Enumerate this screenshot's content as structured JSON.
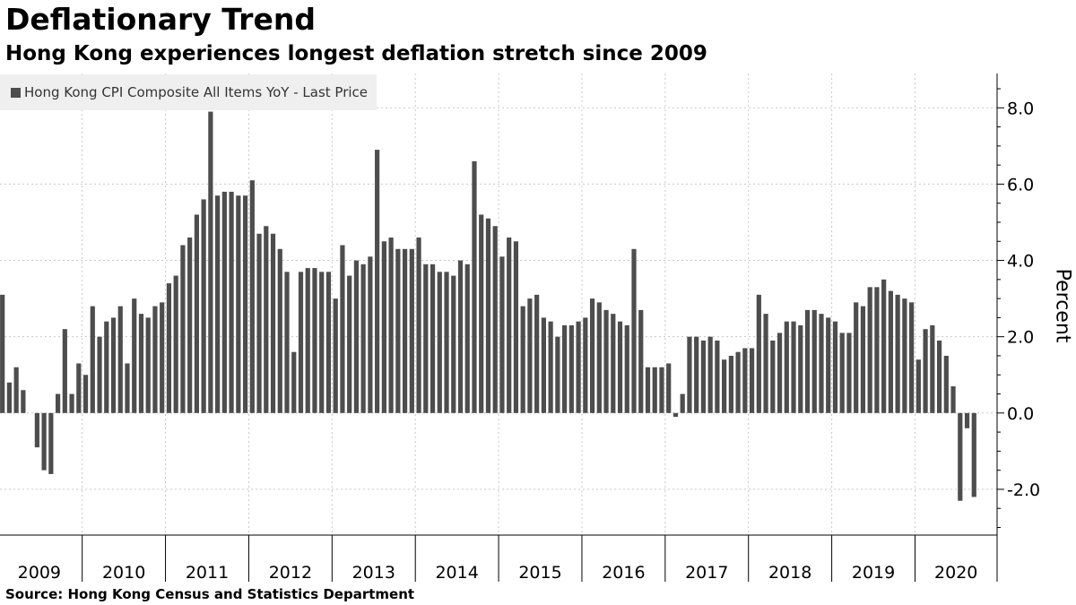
{
  "title": "Deflationary Trend",
  "subtitle": "Hong Kong experiences longest deflation stretch since 2009",
  "source": "Source:  Hong Kong Census and Statistics Department",
  "chart_data": {
    "type": "bar",
    "title": "Deflationary Trend",
    "subtitle": "Hong Kong experiences longest deflation stretch since 2009",
    "xlabel": "",
    "ylabel": "Percent",
    "ylim": [
      -3.2,
      8.9
    ],
    "yticks": [
      8.0,
      6.0,
      4.0,
      2.0,
      0.0,
      -2.0
    ],
    "ytick_labels": [
      "8.0",
      "6.0",
      "4.0",
      "2.0",
      "0.0",
      "-2.0"
    ],
    "year_labels": [
      "2009",
      "2010",
      "2011",
      "2012",
      "2013",
      "2014",
      "2015",
      "2016",
      "2017",
      "2018",
      "2019",
      "2020"
    ],
    "grid": true,
    "legend_position": "top-left",
    "bar_color": "#4d4d4d",
    "series": [
      {
        "name": "Hong Kong CPI Composite All Items YoY - Last Price",
        "frequency": "monthly",
        "start": "2009-01",
        "values": [
          3.1,
          0.8,
          1.2,
          0.6,
          0.0,
          -0.9,
          -1.5,
          -1.6,
          0.5,
          2.2,
          0.5,
          1.3,
          1.0,
          2.8,
          2.0,
          2.4,
          2.5,
          2.8,
          1.3,
          3.0,
          2.6,
          2.5,
          2.8,
          2.9,
          3.4,
          3.6,
          4.4,
          4.6,
          5.2,
          5.6,
          7.9,
          5.7,
          5.8,
          5.8,
          5.7,
          5.7,
          6.1,
          4.7,
          4.9,
          4.7,
          4.3,
          3.7,
          1.6,
          3.7,
          3.8,
          3.8,
          3.7,
          3.7,
          3.0,
          4.4,
          3.6,
          4.0,
          3.9,
          4.1,
          6.9,
          4.5,
          4.6,
          4.3,
          4.3,
          4.3,
          4.6,
          3.9,
          3.9,
          3.7,
          3.7,
          3.6,
          4.0,
          3.9,
          6.6,
          5.2,
          5.1,
          4.9,
          4.1,
          4.6,
          4.5,
          2.8,
          3.0,
          3.1,
          2.5,
          2.4,
          2.0,
          2.3,
          2.3,
          2.4,
          2.5,
          3.0,
          2.9,
          2.7,
          2.6,
          2.4,
          2.3,
          4.3,
          2.7,
          1.2,
          1.2,
          1.2,
          1.3,
          -0.1,
          0.5,
          2.0,
          2.0,
          1.9,
          2.0,
          1.9,
          1.4,
          1.5,
          1.6,
          1.7,
          1.7,
          3.1,
          2.6,
          1.9,
          2.1,
          2.4,
          2.4,
          2.3,
          2.7,
          2.7,
          2.6,
          2.5,
          2.4,
          2.1,
          2.1,
          2.9,
          2.8,
          3.3,
          3.3,
          3.5,
          3.2,
          3.1,
          3.0,
          2.9,
          1.4,
          2.2,
          2.3,
          1.9,
          1.5,
          0.7,
          -2.3,
          -0.4,
          -2.2
        ]
      }
    ]
  }
}
